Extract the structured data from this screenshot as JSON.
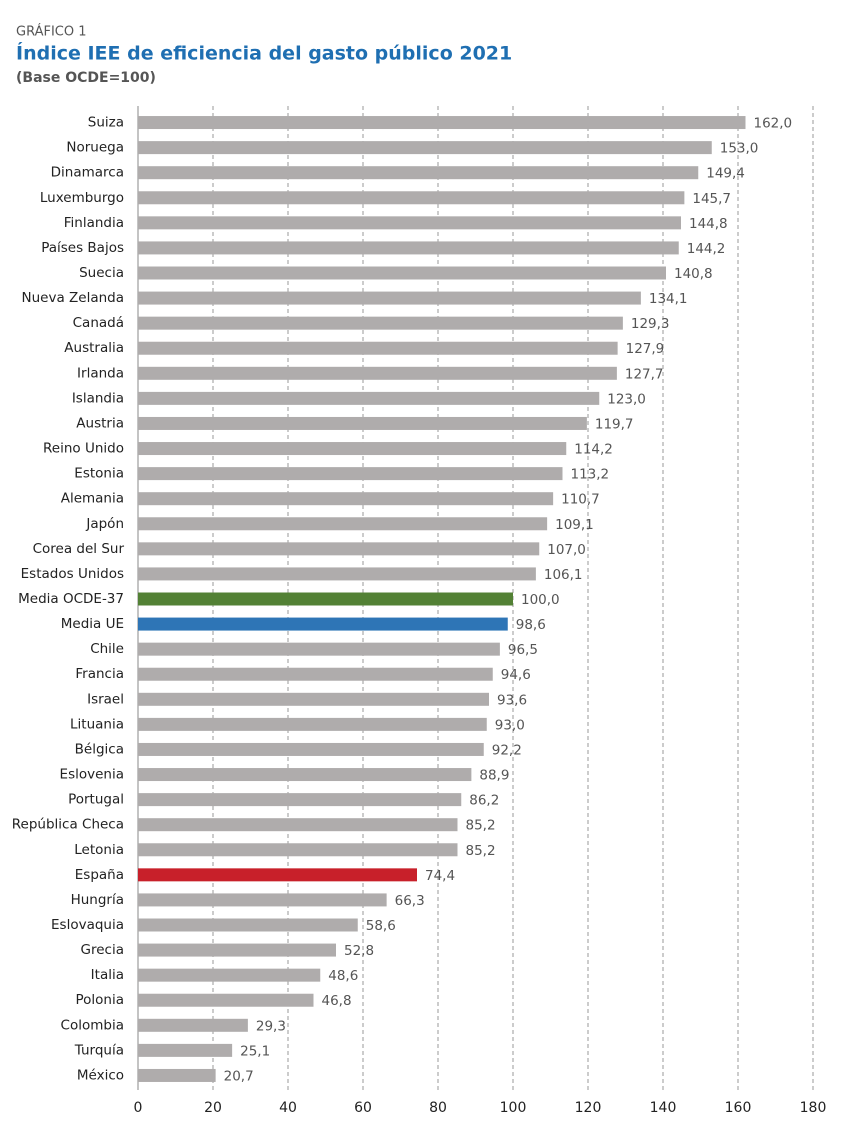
{
  "chart_data": {
    "type": "barh",
    "kicker": "GRÁFICO 1",
    "title": "Índice IEE de eficiencia del gasto público 2021",
    "subtitle": "(Base OCDE=100)",
    "categories": [
      "Suiza",
      "Noruega",
      "Dinamarca",
      "Luxemburgo",
      "Finlandia",
      "Países Bajos",
      "Suecia",
      "Nueva Zelanda",
      "Canadá",
      "Australia",
      "Irlanda",
      "Islandia",
      "Austria",
      "Reino Unido",
      "Estonia",
      "Alemania",
      "Japón",
      "Corea del Sur",
      "Estados Unidos",
      "Media OCDE-37",
      "Media UE",
      "Chile",
      "Francia",
      "Israel",
      "Lituania",
      "Bélgica",
      "Eslovenia",
      "Portugal",
      "República Checa",
      "Letonia",
      "España",
      "Hungría",
      "Eslovaquia",
      "Grecia",
      "Italia",
      "Polonia",
      "Colombia",
      "Turquía",
      "México"
    ],
    "values": [
      162.0,
      153.0,
      149.4,
      145.7,
      144.8,
      144.2,
      140.8,
      134.1,
      129.3,
      127.9,
      127.7,
      123.0,
      119.7,
      114.2,
      113.2,
      110.7,
      109.1,
      107.0,
      106.1,
      100.0,
      98.6,
      96.5,
      94.6,
      93.6,
      93.0,
      92.2,
      88.9,
      86.2,
      85.2,
      85.2,
      74.4,
      66.3,
      58.6,
      52.8,
      48.6,
      46.8,
      29.3,
      25.1,
      20.7
    ],
    "value_labels": [
      "162,0",
      "153,0",
      "149,4",
      "145,7",
      "144,8",
      "144,2",
      "140,8",
      "134,1",
      "129,3",
      "127,9",
      "127,7",
      "123,0",
      "119,7",
      "114,2",
      "113,2",
      "110,7",
      "109,1",
      "107,0",
      "106,1",
      "100,0",
      "98,6",
      "96,5",
      "94,6",
      "93,6",
      "93,0",
      "92,2",
      "88,9",
      "86,2",
      "85,2",
      "85,2",
      "74,4",
      "66,3",
      "58,6",
      "52,8",
      "48,6",
      "46,8",
      "29,3",
      "25,1",
      "20,7"
    ],
    "colors": [
      "#afacac",
      "#afacac",
      "#afacac",
      "#afacac",
      "#afacac",
      "#afacac",
      "#afacac",
      "#afacac",
      "#afacac",
      "#afacac",
      "#afacac",
      "#afacac",
      "#afacac",
      "#afacac",
      "#afacac",
      "#afacac",
      "#afacac",
      "#afacac",
      "#afacac",
      "#538135",
      "#2e75b6",
      "#afacac",
      "#afacac",
      "#afacac",
      "#afacac",
      "#afacac",
      "#afacac",
      "#afacac",
      "#afacac",
      "#afacac",
      "#c8202a",
      "#afacac",
      "#afacac",
      "#afacac",
      "#afacac",
      "#afacac",
      "#afacac",
      "#afacac",
      "#afacac"
    ],
    "xlim": [
      0,
      180
    ],
    "xticks": [
      0,
      20,
      40,
      60,
      80,
      100,
      120,
      140,
      160,
      180
    ],
    "grid": true
  }
}
